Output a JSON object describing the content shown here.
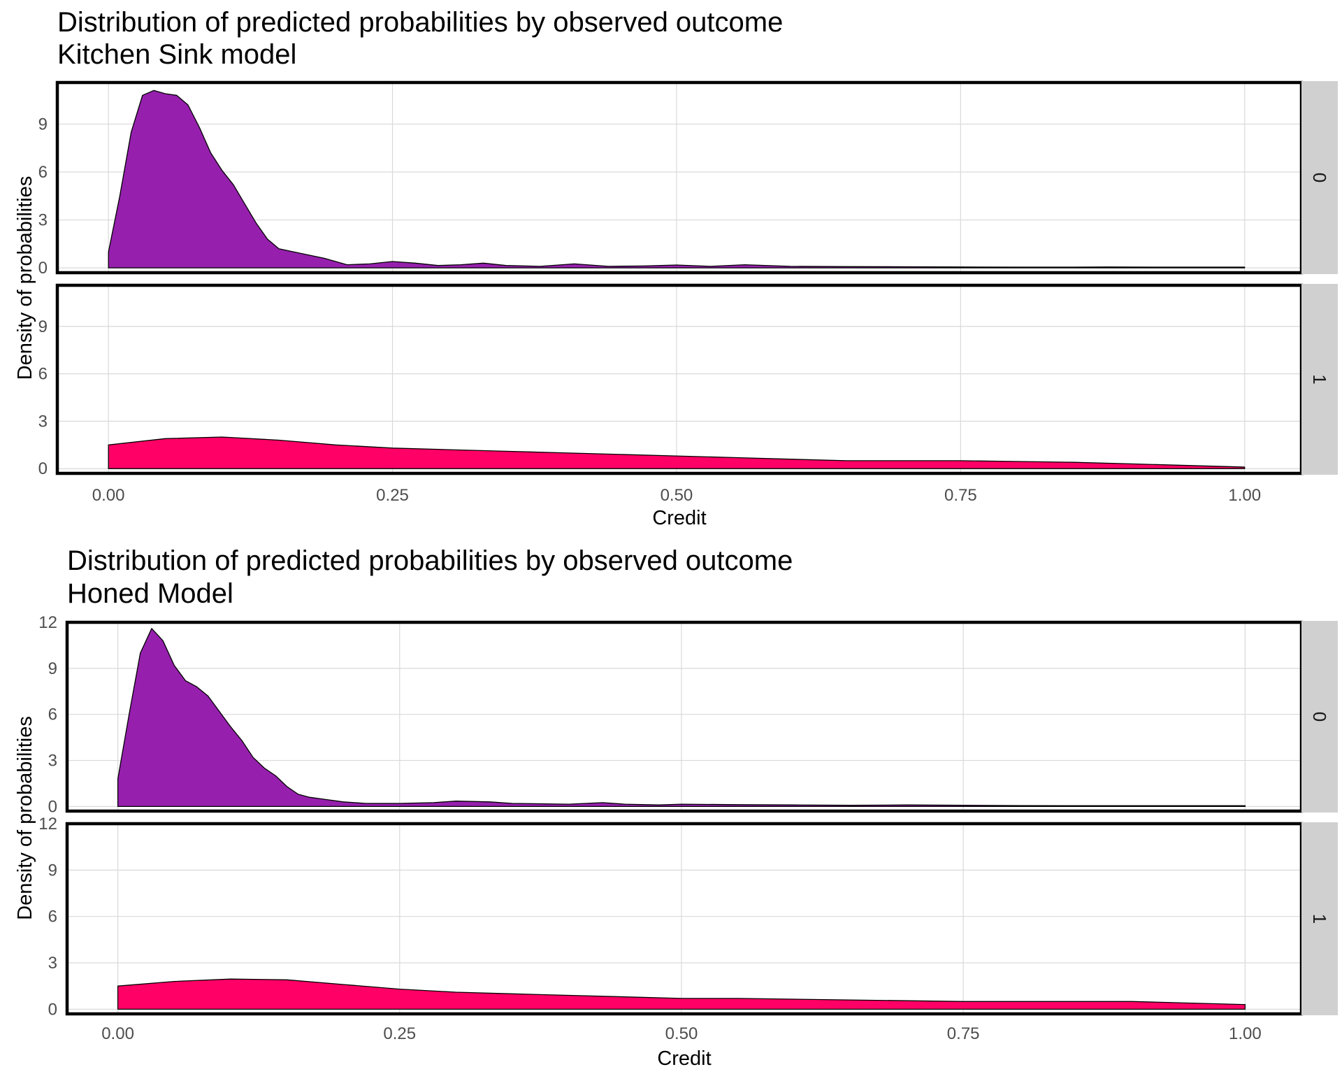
{
  "chart_data": [
    {
      "type": "area",
      "title": "Distribution of predicted probabilities by observed outcome",
      "subtitle": "Kitchen Sink model",
      "xlabel": "Credit",
      "ylabel": "Density of probabilities",
      "xlim": [
        -0.045,
        1.05
      ],
      "ylim": [
        -0.3,
        11.6
      ],
      "x_ticks": [
        "0.00",
        "0.25",
        "0.50",
        "0.75",
        "1.00"
      ],
      "y_ticks": [
        "0",
        "3",
        "6",
        "9"
      ],
      "facet_var_values": [
        "0",
        "1"
      ],
      "grid": true,
      "series": [
        {
          "name": "0",
          "color": "#9620AD",
          "x": [
            0.0,
            0.01,
            0.02,
            0.03,
            0.04,
            0.05,
            0.06,
            0.07,
            0.08,
            0.09,
            0.1,
            0.11,
            0.12,
            0.13,
            0.14,
            0.15,
            0.17,
            0.19,
            0.21,
            0.23,
            0.25,
            0.27,
            0.29,
            0.31,
            0.33,
            0.35,
            0.38,
            0.41,
            0.44,
            0.47,
            0.5,
            0.53,
            0.56,
            0.6,
            0.65,
            0.7,
            0.75,
            0.8,
            0.85,
            0.88,
            0.92,
            0.96,
            1.0
          ],
          "y": [
            1.0,
            4.5,
            8.5,
            10.8,
            11.1,
            10.9,
            10.8,
            10.2,
            8.8,
            7.2,
            6.1,
            5.2,
            4.0,
            2.8,
            1.8,
            1.2,
            0.9,
            0.6,
            0.2,
            0.25,
            0.4,
            0.3,
            0.15,
            0.2,
            0.3,
            0.15,
            0.1,
            0.25,
            0.1,
            0.12,
            0.18,
            0.1,
            0.2,
            0.1,
            0.08,
            0.07,
            0.06,
            0.05,
            0.05,
            0.06,
            0.05,
            0.05,
            0.05
          ]
        },
        {
          "name": "1",
          "color": "#FF0066",
          "x": [
            0.0,
            0.05,
            0.1,
            0.15,
            0.2,
            0.25,
            0.3,
            0.35,
            0.4,
            0.45,
            0.5,
            0.55,
            0.6,
            0.65,
            0.7,
            0.75,
            0.8,
            0.85,
            0.9,
            0.95,
            1.0
          ],
          "y": [
            1.5,
            1.9,
            2.0,
            1.8,
            1.5,
            1.3,
            1.2,
            1.1,
            1.0,
            0.9,
            0.8,
            0.7,
            0.6,
            0.5,
            0.5,
            0.5,
            0.45,
            0.4,
            0.3,
            0.2,
            0.1
          ]
        }
      ]
    },
    {
      "type": "area",
      "title": "Distribution of predicted probabilities by observed outcome",
      "subtitle": "Honed Model",
      "xlabel": "Credit",
      "ylabel": "Density of probabilities",
      "xlim": [
        -0.045,
        1.05
      ],
      "ylim": [
        -0.3,
        12.0
      ],
      "x_ticks": [
        "0.00",
        "0.25",
        "0.50",
        "0.75",
        "1.00"
      ],
      "y_ticks": [
        "0",
        "3",
        "6",
        "9",
        "12"
      ],
      "facet_var_values": [
        "0",
        "1"
      ],
      "grid": true,
      "series": [
        {
          "name": "0",
          "color": "#9620AD",
          "x": [
            0.0,
            0.01,
            0.02,
            0.03,
            0.04,
            0.05,
            0.06,
            0.07,
            0.08,
            0.09,
            0.1,
            0.11,
            0.12,
            0.13,
            0.14,
            0.15,
            0.16,
            0.17,
            0.18,
            0.2,
            0.22,
            0.25,
            0.28,
            0.3,
            0.33,
            0.35,
            0.4,
            0.43,
            0.45,
            0.48,
            0.5,
            0.55,
            0.6,
            0.65,
            0.7,
            0.75,
            0.8,
            0.85,
            0.9,
            0.95,
            1.0
          ],
          "y": [
            1.8,
            6.0,
            10.0,
            11.6,
            10.8,
            9.2,
            8.2,
            7.8,
            7.2,
            6.2,
            5.2,
            4.3,
            3.2,
            2.5,
            2.0,
            1.3,
            0.8,
            0.6,
            0.5,
            0.3,
            0.2,
            0.2,
            0.25,
            0.35,
            0.3,
            0.2,
            0.15,
            0.25,
            0.15,
            0.1,
            0.15,
            0.12,
            0.1,
            0.08,
            0.1,
            0.08,
            0.06,
            0.05,
            0.05,
            0.05,
            0.05
          ]
        },
        {
          "name": "1",
          "color": "#FF0066",
          "x": [
            0.0,
            0.05,
            0.1,
            0.15,
            0.2,
            0.25,
            0.3,
            0.35,
            0.4,
            0.45,
            0.5,
            0.55,
            0.6,
            0.65,
            0.7,
            0.75,
            0.8,
            0.85,
            0.9,
            0.95,
            1.0
          ],
          "y": [
            1.5,
            1.8,
            1.95,
            1.9,
            1.6,
            1.3,
            1.1,
            1.0,
            0.9,
            0.8,
            0.7,
            0.7,
            0.65,
            0.6,
            0.55,
            0.5,
            0.5,
            0.5,
            0.5,
            0.4,
            0.3
          ]
        }
      ]
    }
  ]
}
